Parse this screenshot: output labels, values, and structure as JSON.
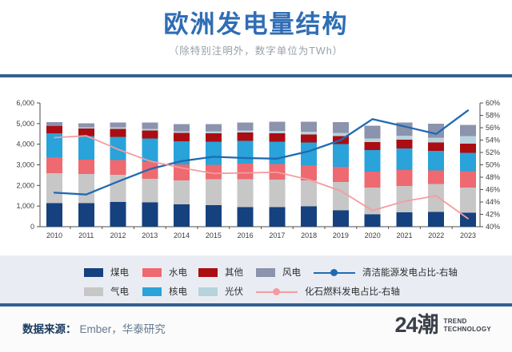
{
  "header": {
    "title": "欧洲发电量结构",
    "subtitle": "（除特别注明外，数字单位为TWh）"
  },
  "colors": {
    "title_blue": "#2f6db5",
    "divider_blue": "#34618f",
    "legend_band_bg": "#e9edf3",
    "coal": "#16417f",
    "gas": "#c7c7c7",
    "hydro": "#ee6a70",
    "nuclear": "#29a3da",
    "other": "#ab0d12",
    "solar": "#b7d3dc",
    "wind": "#8b93ad",
    "clean_line": "#1f6ab3",
    "fossil_line": "#f59ba0"
  },
  "chart_data": {
    "type": "bar",
    "stacked": true,
    "categories": [
      "2010",
      "2011",
      "2012",
      "2013",
      "2014",
      "2015",
      "2016",
      "2017",
      "2018",
      "2019",
      "2020",
      "2021",
      "2022",
      "2023"
    ],
    "series": [
      {
        "id": "coal",
        "name": "煤电",
        "color": "#16417f",
        "values": [
          1150,
          1150,
          1200,
          1180,
          1090,
          1050,
          950,
          950,
          980,
          800,
          600,
          700,
          720,
          670
        ]
      },
      {
        "id": "gas",
        "name": "气电",
        "color": "#c7c7c7",
        "values": [
          1450,
          1400,
          1310,
          1150,
          1150,
          1250,
          1360,
          1330,
          1260,
          1370,
          1300,
          1280,
          1350,
          1230
        ]
      },
      {
        "id": "hydro",
        "name": "水电",
        "color": "#ee6a70",
        "values": [
          760,
          700,
          720,
          810,
          780,
          700,
          740,
          760,
          750,
          740,
          780,
          760,
          650,
          800
        ]
      },
      {
        "id": "nuclear",
        "name": "核电",
        "color": "#29a3da",
        "values": [
          1160,
          1140,
          1130,
          1130,
          1130,
          1130,
          1120,
          1090,
          1090,
          1090,
          1030,
          1060,
          950,
          875
        ]
      },
      {
        "id": "other",
        "name": "其他",
        "color": "#ab0d12",
        "values": [
          380,
          370,
          380,
          390,
          390,
          390,
          390,
          400,
          400,
          400,
          400,
          420,
          420,
          450
        ]
      },
      {
        "id": "solar",
        "name": "光伏",
        "color": "#b7d3dc",
        "values": [
          25,
          50,
          70,
          85,
          95,
          100,
          110,
          120,
          130,
          145,
          165,
          190,
          230,
          360
        ]
      },
      {
        "id": "wind",
        "name": "风电",
        "color": "#8b93ad",
        "values": [
          150,
          200,
          250,
          300,
          330,
          360,
          380,
          450,
          480,
          530,
          620,
          640,
          680,
          545
        ]
      }
    ],
    "lines": [
      {
        "id": "clean-share",
        "name": "清洁能源发电占比-右轴",
        "color": "#1f6ab3",
        "axis": "right",
        "width": 2.3,
        "values": [
          45.5,
          45.2,
          47.3,
          49.3,
          50.6,
          51.3,
          51.1,
          51.0,
          52.2,
          54.0,
          57.4,
          56.2,
          55.0,
          58.8
        ]
      },
      {
        "id": "fossil-share",
        "name": "化石燃料发电占比-右轴",
        "color": "#f59ba0",
        "axis": "right",
        "width": 1.8,
        "values": [
          54.4,
          54.7,
          52.5,
          50.6,
          49.5,
          48.6,
          48.7,
          48.8,
          47.6,
          45.8,
          42.6,
          44.1,
          45.0,
          41.3
        ]
      }
    ],
    "left_axis": {
      "min": 0,
      "max": 6000,
      "step": 1000,
      "tick_labels": [
        "0",
        "1,000",
        "2,000",
        "3,000",
        "4,000",
        "5,000",
        "6,000"
      ]
    },
    "right_axis": {
      "min": 40,
      "max": 60,
      "step": 2,
      "tick_labels": [
        "40%",
        "42%",
        "44%",
        "46%",
        "48%",
        "50%",
        "52%",
        "54%",
        "56%",
        "58%",
        "60%"
      ]
    },
    "grid": false,
    "legend_position": "bottom"
  },
  "legend": {
    "rows": [
      [
        {
          "id": "coal",
          "label": "煤电",
          "kind": "box",
          "color": "#16417f"
        },
        {
          "id": "hydro",
          "label": "水电",
          "kind": "box",
          "color": "#ee6a70"
        },
        {
          "id": "other",
          "label": "其他",
          "kind": "box",
          "color": "#ab0d12"
        },
        {
          "id": "wind",
          "label": "风电",
          "kind": "box",
          "color": "#8b93ad"
        },
        {
          "id": "clean-share",
          "label": "清洁能源发电占比-右轴",
          "kind": "line",
          "color": "#1f6ab3"
        }
      ],
      [
        {
          "id": "gas",
          "label": "气电",
          "kind": "box",
          "color": "#c7c7c7"
        },
        {
          "id": "nuclear",
          "label": "核电",
          "kind": "box",
          "color": "#29a3da"
        },
        {
          "id": "solar",
          "label": "光伏",
          "kind": "box",
          "color": "#b7d3dc"
        },
        {
          "id": "fossil-share",
          "label": "化石燃料发电占比-右轴",
          "kind": "line",
          "color": "#f59ba0"
        }
      ]
    ]
  },
  "footer": {
    "source_label": "数据来源：",
    "source_value": "Ember，华泰研究",
    "logo_text": "24潮",
    "logo_sub1": "TREND",
    "logo_sub2": "TECHNOLOGY"
  }
}
